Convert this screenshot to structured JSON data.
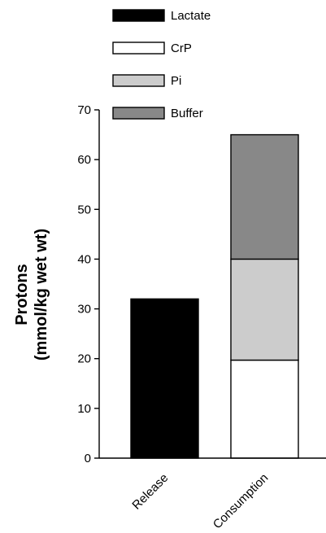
{
  "chart_data": {
    "type": "bar",
    "stacked": true,
    "categories": [
      "Release",
      "Consumption"
    ],
    "series": [
      {
        "name": "Lactate",
        "values": [
          32,
          0
        ],
        "color": "#000000"
      },
      {
        "name": "CrP",
        "values": [
          0,
          19.7
        ],
        "color": "#ffffff"
      },
      {
        "name": "Pi",
        "values": [
          0,
          20.3
        ],
        "color": "#cccccc"
      },
      {
        "name": "Buffer",
        "values": [
          0,
          25
        ],
        "color": "#888888"
      }
    ],
    "ylabel_lines": [
      "Protons",
      "(mmol/kg wet wt)"
    ],
    "ylim": [
      0,
      70
    ],
    "yticks": [
      0,
      10,
      20,
      30,
      40,
      50,
      60,
      70
    ],
    "legend_position": "top",
    "grid": false
  }
}
